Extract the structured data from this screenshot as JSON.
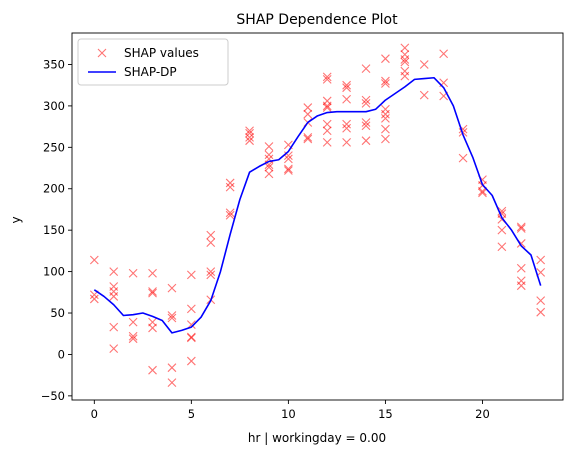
{
  "chart_data": {
    "type": "line",
    "title": "SHAP Dependence Plot",
    "xlabel": "hr | workingday = 0.00",
    "ylabel": "y",
    "xlim": [
      -1.15,
      24.15
    ],
    "ylim": [
      -55,
      388
    ],
    "xticks": [
      0,
      5,
      10,
      15,
      20
    ],
    "yticks": [
      -50,
      0,
      50,
      100,
      150,
      200,
      250,
      300,
      350
    ],
    "grid": false,
    "legend_position": "top-left",
    "colors": {
      "scatter": "#ff0000",
      "line": "#0000ff"
    },
    "series": [
      {
        "name": "SHAP values",
        "kind": "scatter",
        "marker": "x",
        "points": [
          [
            0,
            114
          ],
          [
            0,
            72
          ],
          [
            0,
            67
          ],
          [
            1,
            100
          ],
          [
            1,
            82
          ],
          [
            1,
            76
          ],
          [
            1,
            70
          ],
          [
            1,
            33
          ],
          [
            1,
            7
          ],
          [
            2,
            98
          ],
          [
            2,
            39
          ],
          [
            2,
            22
          ],
          [
            2,
            19
          ],
          [
            3,
            98
          ],
          [
            3,
            76
          ],
          [
            3,
            74
          ],
          [
            3,
            39
          ],
          [
            3,
            32
          ],
          [
            3,
            -19
          ],
          [
            4,
            80
          ],
          [
            4,
            47
          ],
          [
            4,
            44
          ],
          [
            4,
            -16
          ],
          [
            4,
            -34
          ],
          [
            5,
            96
          ],
          [
            5,
            55
          ],
          [
            5,
            36
          ],
          [
            5,
            21
          ],
          [
            5,
            20
          ],
          [
            5,
            -8
          ],
          [
            6,
            144
          ],
          [
            6,
            135
          ],
          [
            6,
            100
          ],
          [
            6,
            96
          ],
          [
            6,
            66
          ],
          [
            7,
            207
          ],
          [
            7,
            202
          ],
          [
            7,
            171
          ],
          [
            7,
            168
          ],
          [
            8,
            270
          ],
          [
            8,
            267
          ],
          [
            8,
            262
          ],
          [
            8,
            258
          ],
          [
            9,
            251
          ],
          [
            9,
            241
          ],
          [
            9,
            236
          ],
          [
            9,
            229
          ],
          [
            9,
            226
          ],
          [
            9,
            218
          ],
          [
            10,
            253
          ],
          [
            10,
            240
          ],
          [
            10,
            236
          ],
          [
            10,
            224
          ],
          [
            10,
            222
          ],
          [
            11,
            298
          ],
          [
            11,
            290
          ],
          [
            11,
            280
          ],
          [
            11,
            262
          ],
          [
            11,
            260
          ],
          [
            12,
            335
          ],
          [
            12,
            332
          ],
          [
            12,
            306
          ],
          [
            12,
            300
          ],
          [
            12,
            298
          ],
          [
            12,
            278
          ],
          [
            12,
            270
          ],
          [
            12,
            256
          ],
          [
            13,
            325
          ],
          [
            13,
            322
          ],
          [
            13,
            308
          ],
          [
            13,
            278
          ],
          [
            13,
            273
          ],
          [
            13,
            256
          ],
          [
            14,
            345
          ],
          [
            14,
            307
          ],
          [
            14,
            303
          ],
          [
            14,
            280
          ],
          [
            14,
            276
          ],
          [
            14,
            258
          ],
          [
            15,
            357
          ],
          [
            15,
            330
          ],
          [
            15,
            327
          ],
          [
            15,
            296
          ],
          [
            15,
            290
          ],
          [
            15,
            285
          ],
          [
            15,
            272
          ],
          [
            15,
            260
          ],
          [
            16,
            370
          ],
          [
            16,
            362
          ],
          [
            16,
            356
          ],
          [
            16,
            353
          ],
          [
            16,
            342
          ],
          [
            16,
            336
          ],
          [
            17,
            350
          ],
          [
            17,
            313
          ],
          [
            18,
            363
          ],
          [
            18,
            328
          ],
          [
            18,
            312
          ],
          [
            19,
            272
          ],
          [
            19,
            268
          ],
          [
            19,
            237
          ],
          [
            20,
            211
          ],
          [
            20,
            204
          ],
          [
            20,
            197
          ],
          [
            20,
            195
          ],
          [
            21,
            173
          ],
          [
            21,
            170
          ],
          [
            21,
            163
          ],
          [
            21,
            150
          ],
          [
            21,
            130
          ],
          [
            22,
            154
          ],
          [
            22,
            152
          ],
          [
            22,
            134
          ],
          [
            22,
            104
          ],
          [
            22,
            89
          ],
          [
            22,
            83
          ],
          [
            23,
            114
          ],
          [
            23,
            99
          ],
          [
            23,
            65
          ],
          [
            23,
            51
          ]
        ]
      },
      {
        "name": "SHAP-DP",
        "kind": "line",
        "points": [
          [
            0,
            78
          ],
          [
            0.5,
            70
          ],
          [
            1,
            60
          ],
          [
            1.5,
            47
          ],
          [
            2,
            48
          ],
          [
            2.5,
            50
          ],
          [
            3,
            46
          ],
          [
            3.5,
            41
          ],
          [
            4,
            26
          ],
          [
            4.5,
            29
          ],
          [
            5,
            33
          ],
          [
            5.5,
            45
          ],
          [
            6,
            65
          ],
          [
            6.5,
            100
          ],
          [
            7,
            145
          ],
          [
            7.5,
            187
          ],
          [
            8,
            220
          ],
          [
            8.5,
            227
          ],
          [
            9,
            233
          ],
          [
            9.5,
            235
          ],
          [
            10,
            245
          ],
          [
            10.5,
            263
          ],
          [
            11,
            280
          ],
          [
            11.5,
            288
          ],
          [
            12,
            292
          ],
          [
            12.5,
            293
          ],
          [
            13,
            293
          ],
          [
            13.5,
            293
          ],
          [
            14,
            293
          ],
          [
            14.5,
            296
          ],
          [
            15,
            307
          ],
          [
            15.5,
            315
          ],
          [
            16,
            323
          ],
          [
            16.5,
            332
          ],
          [
            17,
            333
          ],
          [
            17.5,
            334
          ],
          [
            18,
            322
          ],
          [
            18.5,
            300
          ],
          [
            19,
            265
          ],
          [
            19.5,
            238
          ],
          [
            20,
            205
          ],
          [
            20.5,
            192
          ],
          [
            21,
            165
          ],
          [
            21.5,
            150
          ],
          [
            22,
            131
          ],
          [
            22.5,
            120
          ],
          [
            23,
            83
          ]
        ]
      }
    ]
  }
}
